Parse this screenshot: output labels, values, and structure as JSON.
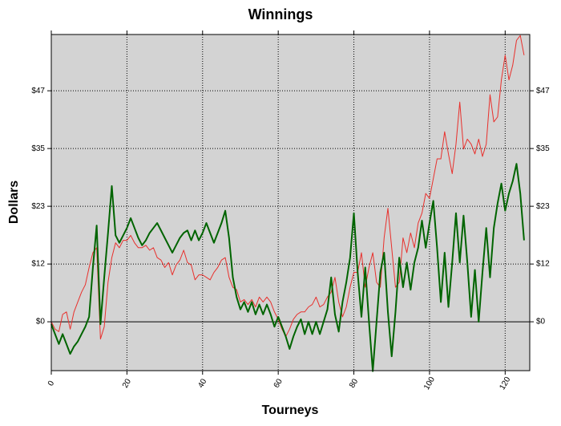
{
  "chart_data": {
    "type": "line",
    "title": "Winnings",
    "x_label": "Tourneys",
    "y_label": "Dollars",
    "x": [
      0,
      1,
      2,
      3,
      4,
      5,
      6,
      7,
      8,
      9,
      10,
      11,
      12,
      13,
      14,
      15,
      16,
      17,
      18,
      19,
      20,
      21,
      22,
      23,
      24,
      25,
      26,
      27,
      28,
      29,
      30,
      31,
      32,
      33,
      34,
      35,
      36,
      37,
      38,
      39,
      40,
      41,
      42,
      43,
      44,
      45,
      46,
      47,
      48,
      49,
      50,
      51,
      52,
      53,
      54,
      55,
      56,
      57,
      58,
      59,
      60,
      61,
      62,
      63,
      64,
      65,
      66,
      67,
      68,
      69,
      70,
      71,
      72,
      73,
      74,
      75,
      76,
      77,
      78,
      79,
      80,
      81,
      82,
      83,
      84,
      85,
      86,
      87,
      88,
      89,
      90,
      91,
      92,
      93,
      94,
      95,
      96,
      97,
      98,
      99,
      100,
      101,
      102,
      103,
      104,
      105,
      106,
      107,
      108,
      109,
      110,
      111,
      112,
      113,
      114,
      115,
      116,
      117,
      118,
      119,
      120,
      121,
      122,
      123,
      124,
      125
    ],
    "series": [
      {
        "color": "#e8302c",
        "values": [
          0,
          -1.5,
          -2,
          1.5,
          2,
          -1.5,
          2,
          4,
          6,
          7.5,
          11,
          14,
          15,
          -3.5,
          -1,
          8,
          13,
          16,
          15,
          16.5,
          16.5,
          17.5,
          16,
          15,
          15,
          15.5,
          14.5,
          15,
          13,
          12.5,
          11,
          12,
          9.5,
          11.5,
          12.5,
          14.5,
          12,
          11.5,
          8.5,
          9.5,
          9.5,
          9,
          8.5,
          10,
          11,
          12.5,
          13,
          9,
          7,
          6.5,
          4,
          4.5,
          3.5,
          4.5,
          3,
          5,
          4,
          5,
          4,
          2,
          0.5,
          -1.5,
          -3,
          -1.5,
          0.5,
          1.5,
          2,
          2,
          3,
          3.5,
          5,
          3,
          3.5,
          5,
          6,
          9,
          4,
          1,
          3,
          7,
          10,
          10,
          14,
          7,
          11,
          14,
          8,
          7,
          17,
          23,
          15,
          7,
          8,
          17,
          14,
          18,
          15,
          20,
          22,
          26,
          25,
          29,
          33,
          33,
          38.5,
          34,
          30,
          36,
          44.5,
          35,
          37,
          36,
          34,
          37,
          33.5,
          36,
          46,
          40.5,
          41.5,
          49,
          54,
          49,
          52,
          57,
          58,
          54
        ]
      },
      {
        "color": "#006400",
        "values": [
          -0.5,
          -2.5,
          -4.5,
          -2.5,
          -4.5,
          -6.5,
          -5,
          -4,
          -2.5,
          -1,
          1,
          11,
          19.5,
          -0.5,
          9,
          18,
          27.5,
          17.5,
          16,
          17.5,
          19,
          21,
          19,
          17,
          15.5,
          16.5,
          18,
          19,
          20,
          18.5,
          17,
          15.5,
          14,
          15.5,
          17,
          18,
          18.5,
          16.5,
          18.5,
          16.5,
          18,
          20,
          18,
          16,
          18,
          20,
          22.5,
          17,
          9,
          5,
          2.5,
          4,
          2,
          4,
          1.5,
          3.5,
          1.5,
          3.5,
          1.5,
          -1,
          1,
          -1,
          -3,
          -5.5,
          -3,
          -1,
          0.5,
          -2.5,
          0,
          -2.5,
          0,
          -2.5,
          0,
          2.5,
          9,
          1.5,
          -2,
          4,
          8,
          13,
          22,
          10,
          1,
          11,
          0,
          -10,
          0,
          10,
          14,
          2,
          -7,
          2,
          13,
          7,
          12,
          6.5,
          12,
          15,
          20.5,
          15,
          20,
          24.5,
          15,
          4,
          14,
          3,
          12,
          22,
          12,
          21.5,
          12,
          1,
          10.5,
          0,
          10,
          19,
          9,
          19,
          24,
          28,
          22.5,
          26,
          28.5,
          32,
          26,
          16.5
        ]
      }
    ],
    "xlim": [
      0,
      126.5
    ],
    "xticks": [
      0,
      20,
      40,
      60,
      80,
      100,
      120
    ],
    "ylim": [
      -9.9,
      58.2
    ],
    "yticks": [
      {
        "value": 0,
        "label": "$0"
      },
      {
        "value": 11.7,
        "label": "$12"
      },
      {
        "value": 23.4,
        "label": "$23"
      },
      {
        "value": 35.1,
        "label": "$35"
      },
      {
        "value": 46.8,
        "label": "$47"
      }
    ],
    "grid": true
  }
}
